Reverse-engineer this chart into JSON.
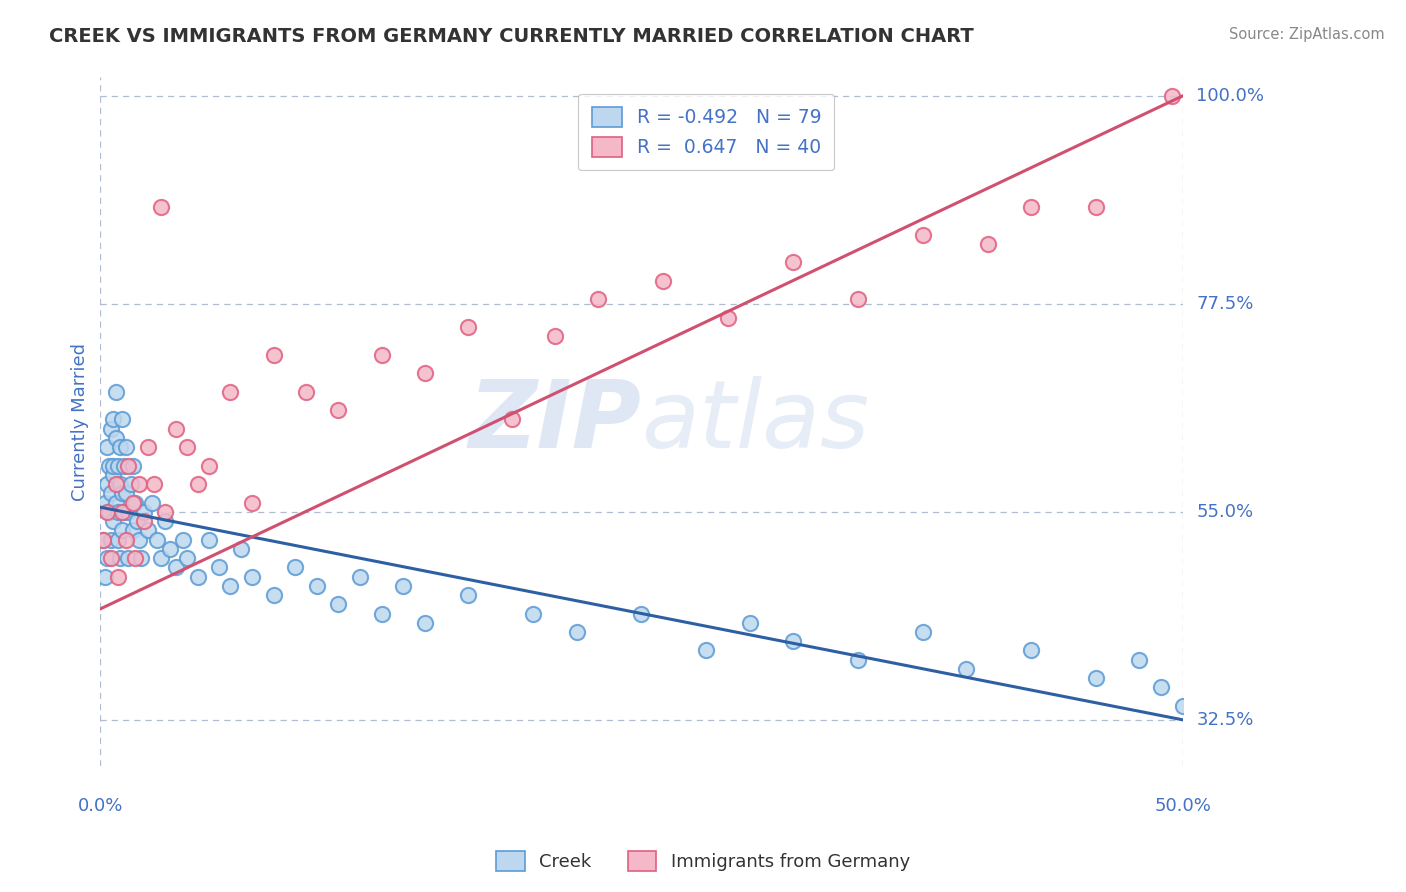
{
  "title": "CREEK VS IMMIGRANTS FROM GERMANY CURRENTLY MARRIED CORRELATION CHART",
  "source": "Source: ZipAtlas.com",
  "ylabel": "Currently Married",
  "x_min": 0.0,
  "x_max": 0.5,
  "y_min": 0.275,
  "y_max": 1.02,
  "y_ticks": [
    0.325,
    0.55,
    0.775,
    1.0
  ],
  "y_tick_labels": [
    "32.5%",
    "55.0%",
    "77.5%",
    "100.0%"
  ],
  "x_ticks": [
    0.0,
    0.5
  ],
  "x_tick_labels": [
    "0.0%",
    "50.0%"
  ],
  "creek_color": "#5b9bd5",
  "creek_face": "#bdd7ee",
  "germany_color": "#e06080",
  "germany_face": "#f4b8c8",
  "blue_line_color": "#2e5fa3",
  "pink_line_color": "#d05070",
  "grid_color": "#b0bcd0",
  "background_color": "#ffffff",
  "title_color": "#333333",
  "source_color": "#888888",
  "axis_label_color": "#4472c4",
  "watermark_color": "#c8d8ec",
  "creek_scatter_x": [
    0.001,
    0.002,
    0.002,
    0.003,
    0.003,
    0.003,
    0.004,
    0.004,
    0.005,
    0.005,
    0.005,
    0.006,
    0.006,
    0.006,
    0.006,
    0.007,
    0.007,
    0.007,
    0.008,
    0.008,
    0.008,
    0.009,
    0.009,
    0.009,
    0.01,
    0.01,
    0.01,
    0.011,
    0.011,
    0.012,
    0.012,
    0.013,
    0.013,
    0.014,
    0.015,
    0.015,
    0.016,
    0.017,
    0.018,
    0.019,
    0.02,
    0.022,
    0.024,
    0.026,
    0.028,
    0.03,
    0.032,
    0.035,
    0.038,
    0.04,
    0.045,
    0.05,
    0.055,
    0.06,
    0.065,
    0.07,
    0.08,
    0.09,
    0.1,
    0.11,
    0.12,
    0.13,
    0.14,
    0.15,
    0.17,
    0.2,
    0.22,
    0.25,
    0.28,
    0.3,
    0.32,
    0.35,
    0.38,
    0.4,
    0.43,
    0.46,
    0.48,
    0.49,
    0.5
  ],
  "creek_scatter_y": [
    0.52,
    0.56,
    0.48,
    0.62,
    0.5,
    0.58,
    0.6,
    0.55,
    0.64,
    0.57,
    0.52,
    0.65,
    0.59,
    0.54,
    0.6,
    0.63,
    0.56,
    0.68,
    0.6,
    0.55,
    0.52,
    0.58,
    0.62,
    0.5,
    0.65,
    0.57,
    0.53,
    0.6,
    0.55,
    0.62,
    0.57,
    0.55,
    0.5,
    0.58,
    0.6,
    0.53,
    0.56,
    0.54,
    0.52,
    0.5,
    0.55,
    0.53,
    0.56,
    0.52,
    0.5,
    0.54,
    0.51,
    0.49,
    0.52,
    0.5,
    0.48,
    0.52,
    0.49,
    0.47,
    0.51,
    0.48,
    0.46,
    0.49,
    0.47,
    0.45,
    0.48,
    0.44,
    0.47,
    0.43,
    0.46,
    0.44,
    0.42,
    0.44,
    0.4,
    0.43,
    0.41,
    0.39,
    0.42,
    0.38,
    0.4,
    0.37,
    0.39,
    0.36,
    0.34
  ],
  "germany_scatter_x": [
    0.001,
    0.003,
    0.005,
    0.007,
    0.008,
    0.01,
    0.012,
    0.013,
    0.015,
    0.016,
    0.018,
    0.02,
    0.022,
    0.025,
    0.028,
    0.03,
    0.035,
    0.04,
    0.045,
    0.05,
    0.06,
    0.07,
    0.08,
    0.095,
    0.11,
    0.13,
    0.15,
    0.17,
    0.19,
    0.21,
    0.23,
    0.26,
    0.29,
    0.32,
    0.35,
    0.38,
    0.41,
    0.43,
    0.46,
    0.495
  ],
  "germany_scatter_y": [
    0.52,
    0.55,
    0.5,
    0.58,
    0.48,
    0.55,
    0.52,
    0.6,
    0.56,
    0.5,
    0.58,
    0.54,
    0.62,
    0.58,
    0.88,
    0.55,
    0.64,
    0.62,
    0.58,
    0.6,
    0.68,
    0.56,
    0.72,
    0.68,
    0.66,
    0.72,
    0.7,
    0.75,
    0.65,
    0.74,
    0.78,
    0.8,
    0.76,
    0.82,
    0.78,
    0.85,
    0.84,
    0.88,
    0.88,
    1.0
  ]
}
